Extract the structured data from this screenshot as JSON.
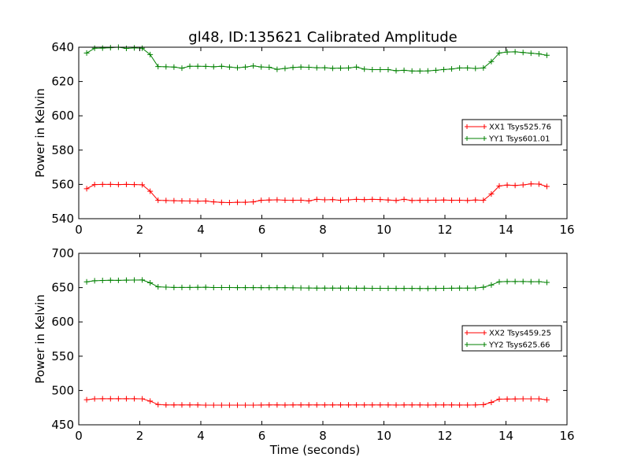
{
  "figure_title": "gl48, ID:135621 Calibrated Amplitude",
  "colors": {
    "xx": "#ff0000",
    "yy": "#008000",
    "axes": "#000000",
    "background": "#ffffff"
  },
  "chart_data": [
    {
      "type": "line",
      "title": "gl48, ID:135621 Calibrated Amplitude",
      "xlabel": "",
      "ylabel": "Power in Kelvin",
      "xlim": [
        0,
        16
      ],
      "ylim": [
        540,
        640
      ],
      "xticks": [
        0,
        2,
        4,
        6,
        8,
        10,
        12,
        14,
        16
      ],
      "yticks": [
        540,
        560,
        580,
        600,
        620,
        640
      ],
      "grid": false,
      "legend_position": "center-right",
      "x": [
        0.26,
        0.52,
        0.78,
        1.04,
        1.3,
        1.56,
        1.82,
        2.08,
        2.34,
        2.6,
        2.86,
        3.12,
        3.38,
        3.64,
        3.9,
        4.16,
        4.42,
        4.68,
        4.94,
        5.2,
        5.46,
        5.72,
        5.98,
        6.24,
        6.5,
        6.76,
        7.02,
        7.28,
        7.54,
        7.8,
        8.06,
        8.32,
        8.58,
        8.84,
        9.1,
        9.36,
        9.62,
        9.88,
        10.14,
        10.4,
        10.66,
        10.92,
        11.18,
        11.44,
        11.7,
        11.96,
        12.22,
        12.48,
        12.74,
        13.0,
        13.26,
        13.52,
        13.78,
        14.04,
        14.3,
        14.56,
        14.82,
        15.08,
        15.34
      ],
      "series": [
        {
          "name": "XX1 Tsys525.76",
          "color": "#ff0000",
          "values": [
            557.5,
            559.9,
            560.0,
            560.0,
            559.9,
            560.0,
            559.9,
            559.8,
            556.0,
            550.7,
            550.6,
            550.5,
            550.4,
            550.3,
            550.2,
            550.3,
            549.8,
            549.5,
            549.4,
            549.6,
            549.6,
            549.8,
            550.7,
            550.9,
            551.0,
            550.8,
            550.7,
            550.8,
            550.4,
            551.3,
            551.0,
            551.1,
            550.7,
            551.0,
            551.3,
            551.1,
            551.3,
            551.2,
            550.9,
            550.6,
            551.3,
            550.6,
            550.7,
            550.7,
            550.8,
            550.9,
            550.7,
            550.8,
            550.6,
            550.9,
            550.7,
            554.4,
            559.1,
            559.6,
            559.4,
            559.7,
            560.3,
            560.2,
            558.8
          ]
        },
        {
          "name": "YY1 Tsys601.01",
          "color": "#008000",
          "values": [
            636.6,
            639.4,
            639.5,
            639.7,
            640.0,
            639.3,
            639.6,
            639.4,
            635.7,
            628.7,
            628.6,
            628.4,
            627.8,
            628.9,
            628.9,
            628.8,
            628.6,
            628.9,
            628.4,
            628.0,
            628.4,
            629.1,
            628.5,
            628.3,
            627.1,
            627.6,
            628.2,
            628.4,
            628.3,
            628.0,
            628.0,
            627.7,
            627.8,
            627.9,
            628.4,
            627.2,
            626.9,
            626.9,
            626.9,
            626.3,
            626.5,
            626.1,
            626.1,
            626.2,
            626.5,
            627.0,
            627.3,
            627.9,
            627.9,
            627.6,
            627.9,
            631.6,
            636.6,
            637.2,
            637.3,
            636.9,
            636.5,
            636.1,
            635.3
          ]
        }
      ]
    },
    {
      "type": "line",
      "title": "",
      "xlabel": "Time (seconds)",
      "ylabel": "Power in Kelvin",
      "xlim": [
        0,
        16
      ],
      "ylim": [
        450,
        700
      ],
      "xticks": [
        0,
        2,
        4,
        6,
        8,
        10,
        12,
        14,
        16
      ],
      "yticks": [
        450,
        500,
        550,
        600,
        650,
        700
      ],
      "grid": false,
      "legend_position": "center-right",
      "x": [
        0.26,
        0.52,
        0.78,
        1.04,
        1.3,
        1.56,
        1.82,
        2.08,
        2.34,
        2.6,
        2.86,
        3.12,
        3.38,
        3.64,
        3.9,
        4.16,
        4.42,
        4.68,
        4.94,
        5.2,
        5.46,
        5.72,
        5.98,
        6.24,
        6.5,
        6.76,
        7.02,
        7.28,
        7.54,
        7.8,
        8.06,
        8.32,
        8.58,
        8.84,
        9.1,
        9.36,
        9.62,
        9.88,
        10.14,
        10.4,
        10.66,
        10.92,
        11.18,
        11.44,
        11.7,
        11.96,
        12.22,
        12.48,
        12.74,
        13.0,
        13.26,
        13.52,
        13.78,
        14.04,
        14.3,
        14.56,
        14.82,
        15.08,
        15.34
      ],
      "series": [
        {
          "name": "XX2 Tsys459.25",
          "color": "#ff0000",
          "values": [
            486.5,
            487.9,
            488.0,
            488.0,
            488.0,
            488.0,
            488.0,
            487.9,
            484.5,
            479.6,
            478.9,
            479.0,
            478.9,
            478.9,
            478.9,
            478.7,
            478.6,
            478.6,
            478.6,
            478.6,
            478.6,
            478.7,
            478.8,
            478.9,
            478.9,
            478.8,
            478.9,
            478.9,
            478.9,
            478.9,
            478.9,
            478.9,
            478.9,
            478.9,
            478.9,
            478.9,
            478.9,
            478.9,
            479.0,
            478.8,
            478.9,
            478.9,
            478.9,
            478.8,
            478.9,
            478.9,
            478.9,
            478.8,
            478.8,
            478.9,
            479.4,
            482.7,
            487.4,
            487.6,
            487.7,
            487.9,
            487.9,
            487.9,
            486.4
          ]
        },
        {
          "name": "YY2 Tsys625.66",
          "color": "#008000",
          "values": [
            658.4,
            660.0,
            660.4,
            660.7,
            660.6,
            660.8,
            661.0,
            661.1,
            657.0,
            651.1,
            650.7,
            650.3,
            650.2,
            650.2,
            650.4,
            650.5,
            650.1,
            650.1,
            650.1,
            650.0,
            650.0,
            650.0,
            649.9,
            649.9,
            649.9,
            649.8,
            649.7,
            649.5,
            649.4,
            649.3,
            649.3,
            649.3,
            649.3,
            649.2,
            649.1,
            649.1,
            649.0,
            648.9,
            648.9,
            648.8,
            648.8,
            648.8,
            648.7,
            648.7,
            648.8,
            649.0,
            649.1,
            649.2,
            649.3,
            649.4,
            650.5,
            653.9,
            658.5,
            658.9,
            658.9,
            658.9,
            658.6,
            658.7,
            657.5
          ]
        }
      ]
    }
  ]
}
